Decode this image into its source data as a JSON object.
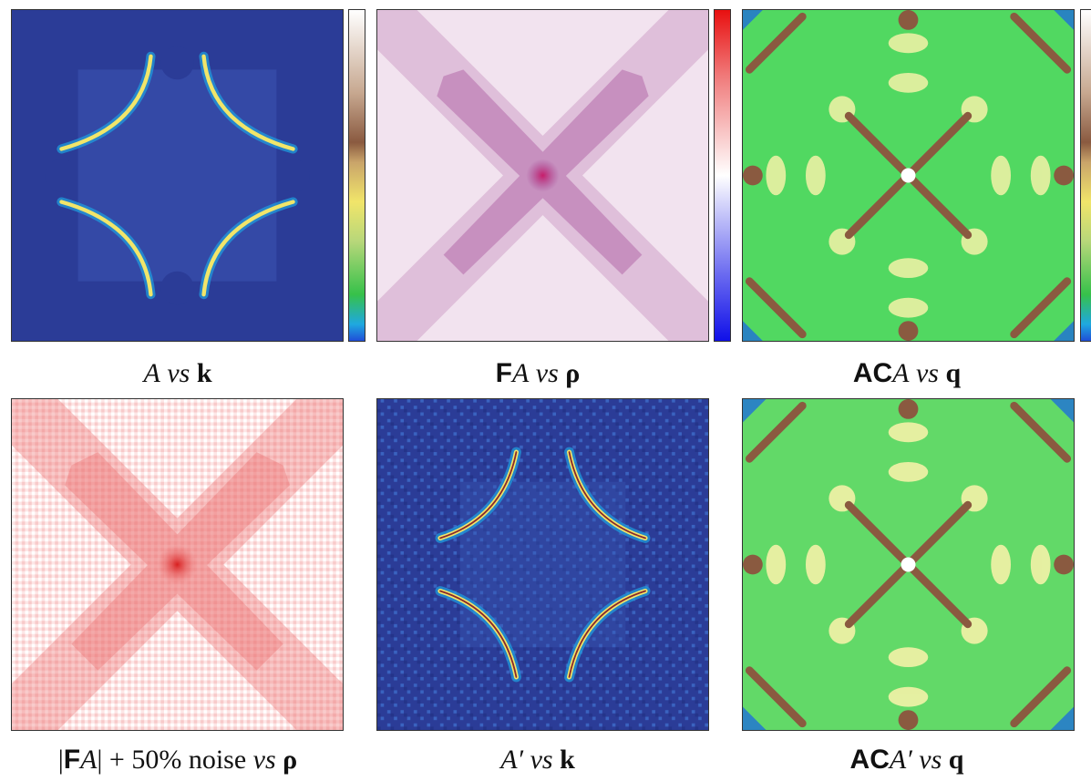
{
  "panels": [
    {
      "id": "a-vs-k",
      "caption": {
        "pre": "",
        "sans": "",
        "italic": "A",
        "mid": "vs",
        "bold": "k"
      }
    },
    {
      "id": "fa-vs-rho",
      "caption": {
        "pre": "",
        "sans": "F",
        "italic": "A",
        "mid": "vs",
        "bold": "ρ"
      }
    },
    {
      "id": "aca-vs-q",
      "caption": {
        "pre": "",
        "sans": "AC",
        "italic": "A",
        "mid": "vs",
        "bold": "q"
      }
    },
    {
      "id": "fa-noise-vs-rho",
      "caption": {
        "pre": "|",
        "sans": "F",
        "italic": "A",
        "post": "| + 50% noise",
        "mid": "vs",
        "bold": "ρ"
      }
    },
    {
      "id": "aprime-vs-k",
      "caption": {
        "pre": "",
        "sans": "",
        "italic": "A′",
        "mid": "vs",
        "bold": "k"
      }
    },
    {
      "id": "acaprime-vs-q",
      "caption": {
        "pre": "",
        "sans": "AC",
        "italic": "A′",
        "mid": "vs",
        "bold": "q"
      }
    }
  ],
  "colors": {
    "spectral_bg": "#2b3c97",
    "spectral_inner": "#3449a6",
    "fa_bg": "#f2e3ef",
    "fa_cross": "#9c3b8f",
    "noise_bg": "#fde6e6",
    "noise_cross": "#ec6d6d",
    "ac_green": "#3fd35a",
    "ac_yellow": "#f4f2a8",
    "ac_brown": "#8a5a40"
  }
}
